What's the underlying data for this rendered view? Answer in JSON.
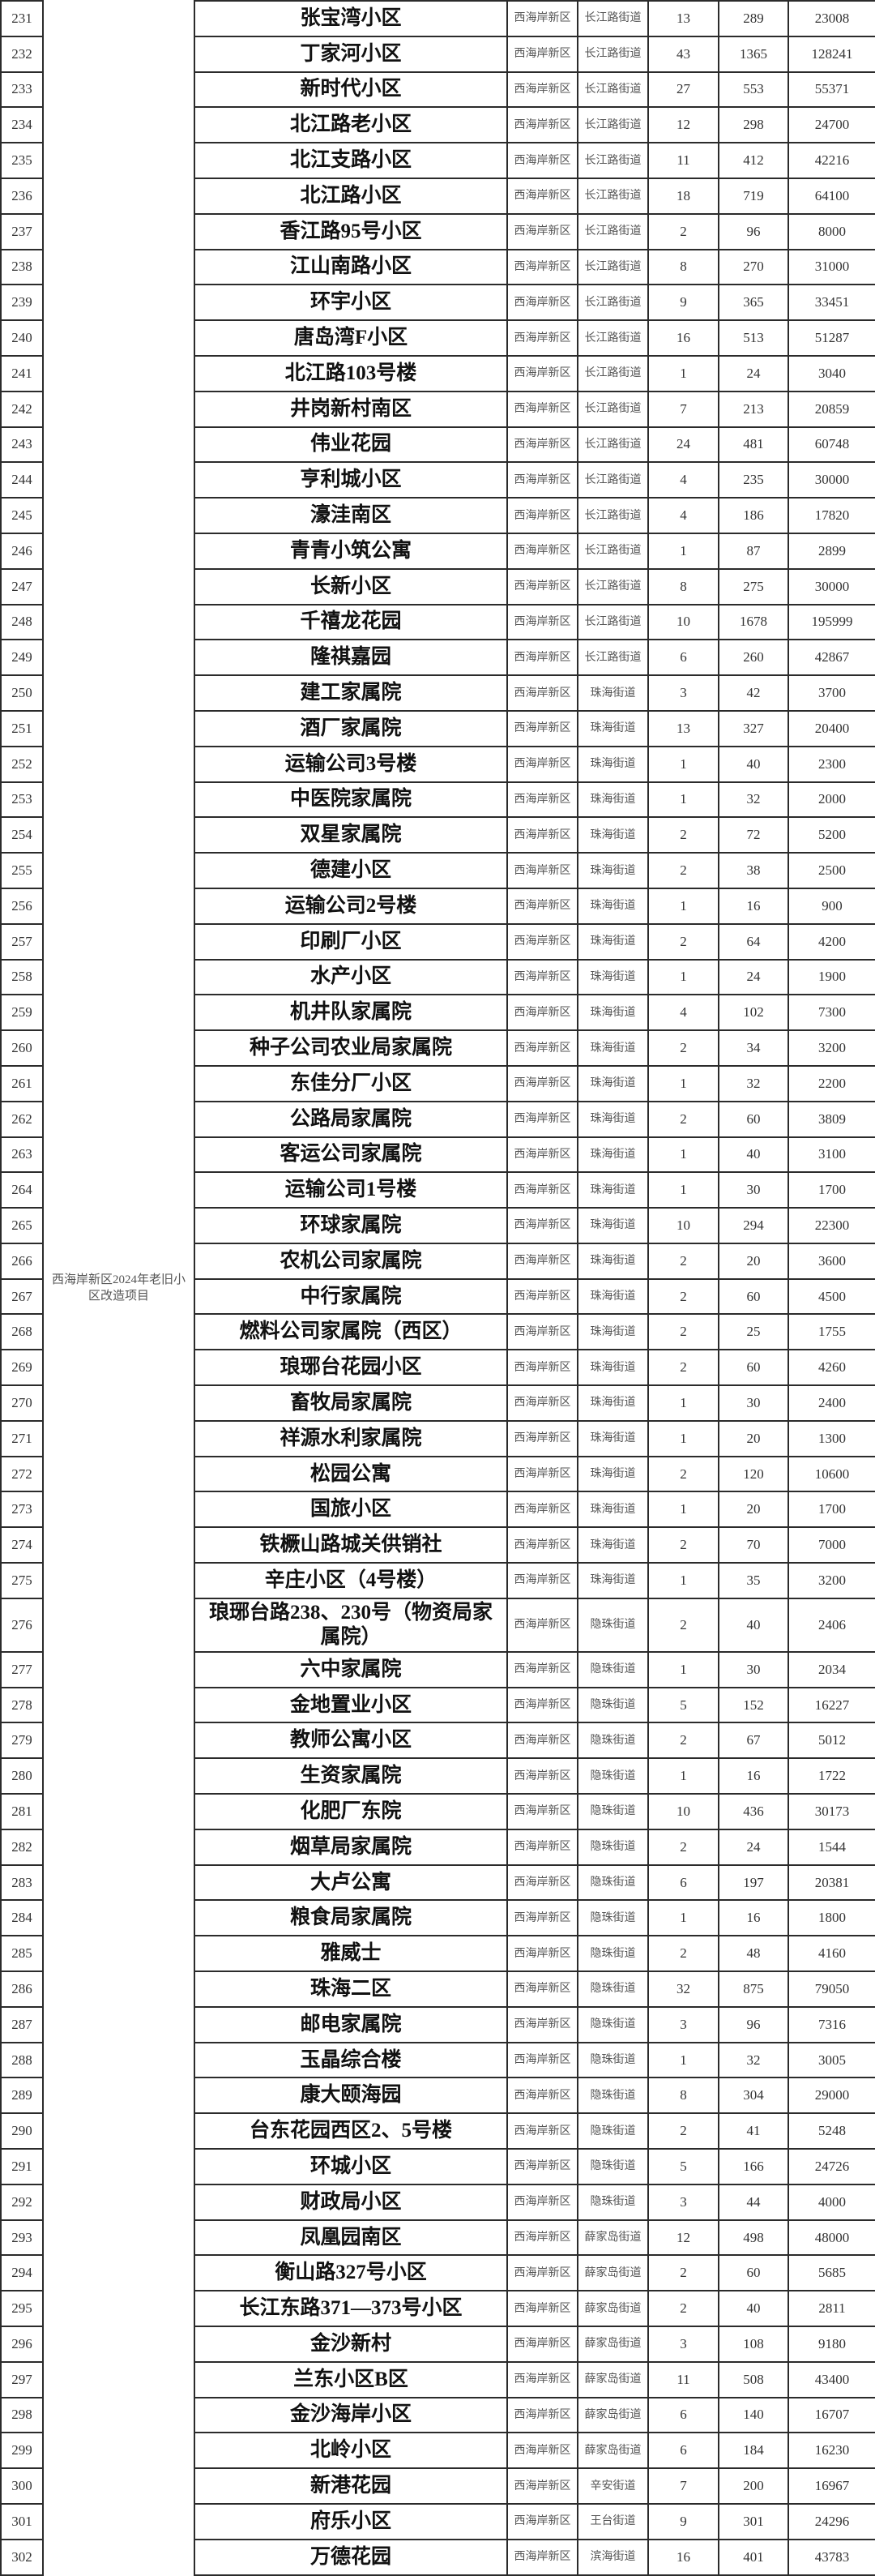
{
  "project": "西海岸新区2024年老旧小区改造项目",
  "rows": [
    [
      "231",
      "张宝湾小区",
      "西海岸新区",
      "长江路街道",
      "13",
      "289",
      "23008"
    ],
    [
      "232",
      "丁家河小区",
      "西海岸新区",
      "长江路街道",
      "43",
      "1365",
      "128241"
    ],
    [
      "233",
      "新时代小区",
      "西海岸新区",
      "长江路街道",
      "27",
      "553",
      "55371"
    ],
    [
      "234",
      "北江路老小区",
      "西海岸新区",
      "长江路街道",
      "12",
      "298",
      "24700"
    ],
    [
      "235",
      "北江支路小区",
      "西海岸新区",
      "长江路街道",
      "11",
      "412",
      "42216"
    ],
    [
      "236",
      "北江路小区",
      "西海岸新区",
      "长江路街道",
      "18",
      "719",
      "64100"
    ],
    [
      "237",
      "香江路95号小区",
      "西海岸新区",
      "长江路街道",
      "2",
      "96",
      "8000"
    ],
    [
      "238",
      "江山南路小区",
      "西海岸新区",
      "长江路街道",
      "8",
      "270",
      "31000"
    ],
    [
      "239",
      "环宇小区",
      "西海岸新区",
      "长江路街道",
      "9",
      "365",
      "33451"
    ],
    [
      "240",
      "唐岛湾F小区",
      "西海岸新区",
      "长江路街道",
      "16",
      "513",
      "51287"
    ],
    [
      "241",
      "北江路103号楼",
      "西海岸新区",
      "长江路街道",
      "1",
      "24",
      "3040"
    ],
    [
      "242",
      "井岗新村南区",
      "西海岸新区",
      "长江路街道",
      "7",
      "213",
      "20859"
    ],
    [
      "243",
      "伟业花园",
      "西海岸新区",
      "长江路街道",
      "24",
      "481",
      "60748"
    ],
    [
      "244",
      "亨利城小区",
      "西海岸新区",
      "长江路街道",
      "4",
      "235",
      "30000"
    ],
    [
      "245",
      "濠洼南区",
      "西海岸新区",
      "长江路街道",
      "4",
      "186",
      "17820"
    ],
    [
      "246",
      "青青小筑公寓",
      "西海岸新区",
      "长江路街道",
      "1",
      "87",
      "2899"
    ],
    [
      "247",
      "长新小区",
      "西海岸新区",
      "长江路街道",
      "8",
      "275",
      "30000"
    ],
    [
      "248",
      "千禧龙花园",
      "西海岸新区",
      "长江路街道",
      "10",
      "1678",
      "195999"
    ],
    [
      "249",
      "隆祺嘉园",
      "西海岸新区",
      "长江路街道",
      "6",
      "260",
      "42867"
    ],
    [
      "250",
      "建工家属院",
      "西海岸新区",
      "珠海街道",
      "3",
      "42",
      "3700"
    ],
    [
      "251",
      "酒厂家属院",
      "西海岸新区",
      "珠海街道",
      "13",
      "327",
      "20400"
    ],
    [
      "252",
      "运输公司3号楼",
      "西海岸新区",
      "珠海街道",
      "1",
      "40",
      "2300"
    ],
    [
      "253",
      "中医院家属院",
      "西海岸新区",
      "珠海街道",
      "1",
      "32",
      "2000"
    ],
    [
      "254",
      "双星家属院",
      "西海岸新区",
      "珠海街道",
      "2",
      "72",
      "5200"
    ],
    [
      "255",
      "德建小区",
      "西海岸新区",
      "珠海街道",
      "2",
      "38",
      "2500"
    ],
    [
      "256",
      "运输公司2号楼",
      "西海岸新区",
      "珠海街道",
      "1",
      "16",
      "900"
    ],
    [
      "257",
      "印刷厂小区",
      "西海岸新区",
      "珠海街道",
      "2",
      "64",
      "4200"
    ],
    [
      "258",
      "水产小区",
      "西海岸新区",
      "珠海街道",
      "1",
      "24",
      "1900"
    ],
    [
      "259",
      "机井队家属院",
      "西海岸新区",
      "珠海街道",
      "4",
      "102",
      "7300"
    ],
    [
      "260",
      "种子公司农业局家属院",
      "西海岸新区",
      "珠海街道",
      "2",
      "34",
      "3200"
    ],
    [
      "261",
      "东佳分厂小区",
      "西海岸新区",
      "珠海街道",
      "1",
      "32",
      "2200"
    ],
    [
      "262",
      "公路局家属院",
      "西海岸新区",
      "珠海街道",
      "2",
      "60",
      "3809"
    ],
    [
      "263",
      "客运公司家属院",
      "西海岸新区",
      "珠海街道",
      "1",
      "40",
      "3100"
    ],
    [
      "264",
      "运输公司1号楼",
      "西海岸新区",
      "珠海街道",
      "1",
      "30",
      "1700"
    ],
    [
      "265",
      "环球家属院",
      "西海岸新区",
      "珠海街道",
      "10",
      "294",
      "22300"
    ],
    [
      "266",
      "农机公司家属院",
      "西海岸新区",
      "珠海街道",
      "2",
      "20",
      "3600"
    ],
    [
      "267",
      "中行家属院",
      "西海岸新区",
      "珠海街道",
      "2",
      "60",
      "4500"
    ],
    [
      "268",
      "燃料公司家属院（西区）",
      "西海岸新区",
      "珠海街道",
      "2",
      "25",
      "1755"
    ],
    [
      "269",
      "琅琊台花园小区",
      "西海岸新区",
      "珠海街道",
      "2",
      "60",
      "4260"
    ],
    [
      "270",
      "畜牧局家属院",
      "西海岸新区",
      "珠海街道",
      "1",
      "30",
      "2400"
    ],
    [
      "271",
      "祥源水利家属院",
      "西海岸新区",
      "珠海街道",
      "1",
      "20",
      "1300"
    ],
    [
      "272",
      "松园公寓",
      "西海岸新区",
      "珠海街道",
      "2",
      "120",
      "10600"
    ],
    [
      "273",
      "国旅小区",
      "西海岸新区",
      "珠海街道",
      "1",
      "20",
      "1700"
    ],
    [
      "274",
      "铁橛山路城关供销社",
      "西海岸新区",
      "珠海街道",
      "2",
      "70",
      "7000"
    ],
    [
      "275",
      "辛庄小区（4号楼）",
      "西海岸新区",
      "珠海街道",
      "1",
      "35",
      "3200"
    ],
    [
      "276",
      "琅琊台路238、230号（物资局家属院）",
      "西海岸新区",
      "隐珠街道",
      "2",
      "40",
      "2406"
    ],
    [
      "277",
      "六中家属院",
      "西海岸新区",
      "隐珠街道",
      "1",
      "30",
      "2034"
    ],
    [
      "278",
      "金地置业小区",
      "西海岸新区",
      "隐珠街道",
      "5",
      "152",
      "16227"
    ],
    [
      "279",
      "教师公寓小区",
      "西海岸新区",
      "隐珠街道",
      "2",
      "67",
      "5012"
    ],
    [
      "280",
      "生资家属院",
      "西海岸新区",
      "隐珠街道",
      "1",
      "16",
      "1722"
    ],
    [
      "281",
      "化肥厂东院",
      "西海岸新区",
      "隐珠街道",
      "10",
      "436",
      "30173"
    ],
    [
      "282",
      "烟草局家属院",
      "西海岸新区",
      "隐珠街道",
      "2",
      "24",
      "1544"
    ],
    [
      "283",
      "大卢公寓",
      "西海岸新区",
      "隐珠街道",
      "6",
      "197",
      "20381"
    ],
    [
      "284",
      "粮食局家属院",
      "西海岸新区",
      "隐珠街道",
      "1",
      "16",
      "1800"
    ],
    [
      "285",
      "雅威士",
      "西海岸新区",
      "隐珠街道",
      "2",
      "48",
      "4160"
    ],
    [
      "286",
      "珠海二区",
      "西海岸新区",
      "隐珠街道",
      "32",
      "875",
      "79050"
    ],
    [
      "287",
      "邮电家属院",
      "西海岸新区",
      "隐珠街道",
      "3",
      "96",
      "7316"
    ],
    [
      "288",
      "玉晶综合楼",
      "西海岸新区",
      "隐珠街道",
      "1",
      "32",
      "3005"
    ],
    [
      "289",
      "康大颐海园",
      "西海岸新区",
      "隐珠街道",
      "8",
      "304",
      "29000"
    ],
    [
      "290",
      "台东花园西区2、5号楼",
      "西海岸新区",
      "隐珠街道",
      "2",
      "41",
      "5248"
    ],
    [
      "291",
      "环城小区",
      "西海岸新区",
      "隐珠街道",
      "5",
      "166",
      "24726"
    ],
    [
      "292",
      "财政局小区",
      "西海岸新区",
      "隐珠街道",
      "3",
      "44",
      "4000"
    ],
    [
      "293",
      "凤凰园南区",
      "西海岸新区",
      "薛家岛街道",
      "12",
      "498",
      "48000"
    ],
    [
      "294",
      "衡山路327号小区",
      "西海岸新区",
      "薛家岛街道",
      "2",
      "60",
      "5685"
    ],
    [
      "295",
      "长江东路371—373号小区",
      "西海岸新区",
      "薛家岛街道",
      "2",
      "40",
      "2811"
    ],
    [
      "296",
      "金沙新村",
      "西海岸新区",
      "薛家岛街道",
      "3",
      "108",
      "9180"
    ],
    [
      "297",
      "兰东小区B区",
      "西海岸新区",
      "薛家岛街道",
      "11",
      "508",
      "43400"
    ],
    [
      "298",
      "金沙海岸小区",
      "西海岸新区",
      "薛家岛街道",
      "6",
      "140",
      "16707"
    ],
    [
      "299",
      "北岭小区",
      "西海岸新区",
      "薛家岛街道",
      "6",
      "184",
      "16230"
    ],
    [
      "300",
      "新港花园",
      "西海岸新区",
      "辛安街道",
      "7",
      "200",
      "16967"
    ],
    [
      "301",
      "府乐小区",
      "西海岸新区",
      "王台街道",
      "9",
      "301",
      "24296"
    ],
    [
      "302",
      "万德花园",
      "西海岸新区",
      "滨海街道",
      "16",
      "401",
      "43783"
    ]
  ]
}
